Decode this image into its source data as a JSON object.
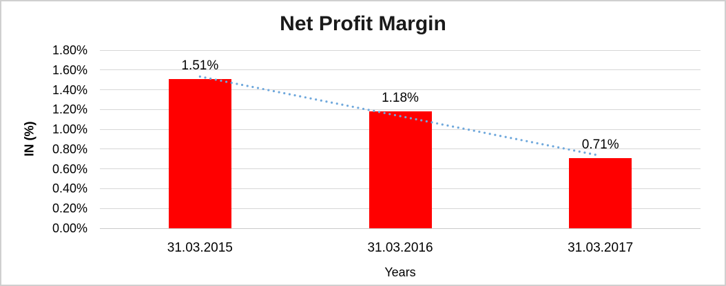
{
  "chart_data": {
    "type": "bar",
    "title": "Net Profit Margin",
    "xlabel": "Years",
    "ylabel": "IN (%)",
    "categories": [
      "31.03.2015",
      "31.03.2016",
      "31.03.2017"
    ],
    "values": [
      1.51,
      1.18,
      0.71
    ],
    "data_labels": [
      "1.51%",
      "1.18%",
      "0.71%"
    ],
    "ylim": [
      0,
      1.8
    ],
    "ytick_step": 0.2,
    "ytick_labels": [
      "0.00%",
      "0.20%",
      "0.40%",
      "0.60%",
      "0.80%",
      "1.00%",
      "1.20%",
      "1.40%",
      "1.60%",
      "1.80%"
    ],
    "grid": true,
    "legend": "none",
    "trendline": {
      "type": "linear",
      "style": "dotted"
    },
    "colors": {
      "bar": "#FF0000",
      "trendline": "#6FA8DC",
      "gridline": "#D6D6D6",
      "axis_line": "#C9C9C9",
      "text": "#000000",
      "title_text": "#1A1A1A",
      "border": "#CFCFCF"
    }
  }
}
